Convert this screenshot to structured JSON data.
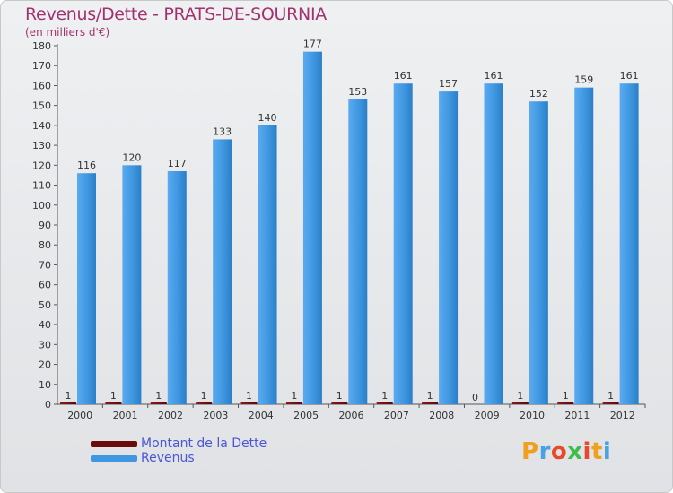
{
  "chart_data": {
    "type": "bar",
    "title": "Revenus/Dette - PRATS-DE-SOURNIA",
    "subtitle": "(en milliers d'€)",
    "categories": [
      "2000",
      "2001",
      "2002",
      "2003",
      "2004",
      "2005",
      "2006",
      "2007",
      "2008",
      "2009",
      "2010",
      "2011",
      "2012"
    ],
    "series": [
      {
        "name": "Montant de la Dette",
        "color": "#6b0b0b",
        "values": [
          1,
          1,
          1,
          1,
          1,
          1,
          1,
          1,
          1,
          0,
          1,
          1,
          1
        ]
      },
      {
        "name": "Revenus",
        "color": "#3f97e0",
        "values": [
          116,
          120,
          117,
          133,
          140,
          177,
          153,
          161,
          157,
          161,
          152,
          159,
          161
        ]
      }
    ],
    "ylim": [
      0,
      180
    ],
    "ytick_step": 10,
    "yticks": [
      "0",
      "10",
      "20",
      "30",
      "40",
      "50",
      "60",
      "70",
      "80",
      "90",
      "100",
      "110",
      "120",
      "130",
      "140",
      "150",
      "160",
      "170",
      "180"
    ],
    "grid": false,
    "legend_position": "bottom-left"
  },
  "legend": {
    "items": [
      "Montant de la Dette",
      "Revenus"
    ]
  },
  "logo": {
    "letters": [
      "P",
      "r",
      "o",
      "x",
      "i",
      "t",
      "i"
    ],
    "colors": [
      "#f0a020",
      "#4aa3e0",
      "#e84a2c",
      "#3cbf4a",
      "#e84a2c",
      "#f0a020",
      "#4aa3e0"
    ]
  }
}
